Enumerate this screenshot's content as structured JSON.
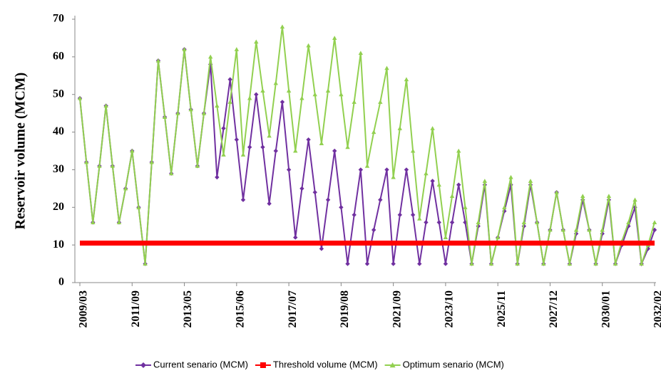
{
  "chart_data": {
    "type": "line",
    "y_label": "Reservoir volume (MCM)",
    "categories": [
      "2009/03",
      null,
      null,
      null,
      null,
      null,
      null,
      null,
      "2011/09",
      null,
      null,
      null,
      null,
      null,
      null,
      null,
      "2013/05",
      null,
      null,
      null,
      null,
      null,
      null,
      null,
      "2015/06",
      null,
      null,
      null,
      null,
      null,
      null,
      null,
      "2017/07",
      null,
      null,
      null,
      null,
      null,
      null,
      null,
      "2019/08",
      null,
      null,
      null,
      null,
      null,
      null,
      null,
      "2021/09",
      null,
      null,
      null,
      null,
      null,
      null,
      null,
      "2023/10",
      null,
      null,
      null,
      null,
      null,
      null,
      null,
      "2025/11",
      null,
      null,
      null,
      null,
      null,
      null,
      null,
      "2027/12",
      null,
      null,
      null,
      null,
      null,
      null,
      null,
      "2030/01",
      null,
      null,
      null,
      null,
      null,
      null,
      null,
      "2032/02"
    ],
    "series": [
      {
        "name": "Current senario (MCM)",
        "color": "#7030a0",
        "marker": "diamond",
        "values": [
          49,
          32,
          16,
          31,
          47,
          31,
          16,
          25,
          35,
          20,
          5,
          32,
          59,
          44,
          29,
          45,
          62,
          46,
          31,
          45,
          58,
          28,
          41,
          54,
          38,
          22,
          36,
          50,
          36,
          21,
          35,
          48,
          30,
          12,
          25,
          38,
          24,
          9,
          22,
          35,
          20,
          5,
          18,
          30,
          5,
          14,
          22,
          30,
          5,
          18,
          30,
          18,
          5,
          16,
          27,
          16,
          5,
          16,
          26,
          16,
          5,
          15,
          26,
          5,
          12,
          19,
          26,
          5,
          15,
          26,
          16,
          5,
          14,
          24,
          14,
          5,
          13,
          22,
          14,
          5,
          13,
          22,
          5,
          10,
          15,
          20,
          5,
          9,
          14
        ]
      },
      {
        "name": "Threshold volume (MCM)",
        "color": "#ff0000",
        "marker": "square",
        "width": 7,
        "values": [
          10.5,
          10.5,
          10.5,
          10.5,
          10.5,
          10.5,
          10.5,
          10.5,
          10.5,
          10.5,
          10.5,
          10.5,
          10.5,
          10.5,
          10.5,
          10.5,
          10.5,
          10.5,
          10.5,
          10.5,
          10.5,
          10.5,
          10.5,
          10.5,
          10.5,
          10.5,
          10.5,
          10.5,
          10.5,
          10.5,
          10.5,
          10.5,
          10.5,
          10.5,
          10.5,
          10.5,
          10.5,
          10.5,
          10.5,
          10.5,
          10.5,
          10.5,
          10.5,
          10.5,
          10.5,
          10.5,
          10.5,
          10.5,
          10.5,
          10.5,
          10.5,
          10.5,
          10.5,
          10.5,
          10.5,
          10.5,
          10.5,
          10.5,
          10.5,
          10.5,
          10.5,
          10.5,
          10.5,
          10.5,
          10.5,
          10.5,
          10.5,
          10.5,
          10.5,
          10.5,
          10.5,
          10.5,
          10.5,
          10.5,
          10.5,
          10.5,
          10.5,
          10.5,
          10.5,
          10.5,
          10.5,
          10.5,
          10.5,
          10.5,
          10.5,
          10.5,
          10.5,
          10.5,
          10.5
        ]
      },
      {
        "name": "Optimum senario (MCM)",
        "color": "#92d050",
        "marker": "triangle",
        "values": [
          49,
          32,
          16,
          31,
          47,
          31,
          16,
          25,
          35,
          20,
          5,
          32,
          59,
          44,
          29,
          45,
          62,
          46,
          31,
          45,
          60,
          47,
          34,
          48,
          62,
          34,
          49,
          64,
          51,
          39,
          53,
          68,
          51,
          35,
          49,
          63,
          50,
          37,
          51,
          65,
          50,
          36,
          48,
          61,
          31,
          40,
          48,
          57,
          28,
          41,
          54,
          35,
          17,
          29,
          41,
          26,
          12,
          23,
          35,
          20,
          5,
          16,
          27,
          5,
          12,
          20,
          28,
          5,
          16,
          27,
          16,
          5,
          14,
          24,
          14,
          5,
          14,
          23,
          14,
          5,
          14,
          23,
          5,
          11,
          16,
          22,
          5,
          10,
          16
        ]
      }
    ],
    "draw_order": [
      "Current senario (MCM)",
      "Optimum senario (MCM)",
      "Threshold volume (MCM)"
    ],
    "ylim": [
      0,
      70
    ],
    "yticks": [
      0,
      10,
      20,
      30,
      40,
      50,
      60,
      70
    ]
  }
}
